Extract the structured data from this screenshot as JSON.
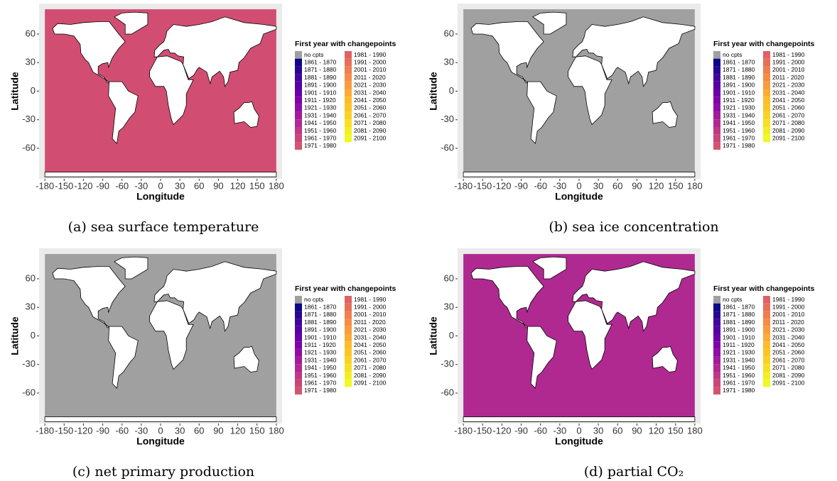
{
  "panels": [
    {
      "caption": "(a) sea surface temperature",
      "x_label": "Longitude",
      "y_label": "Latitude",
      "xlim": [
        -189,
        189
      ],
      "ylim": [
        -92,
        92
      ],
      "xticks": [
        -180,
        -150,
        -120,
        -90,
        -60,
        -30,
        0,
        30,
        60,
        90,
        120,
        150,
        180
      ],
      "yticks": [
        -60,
        -30,
        0,
        30,
        60
      ],
      "legend": {
        "title": "First year with changepoints",
        "entries": [
          {
            "label": "no cpts",
            "color": "#a0a0a0"
          },
          {
            "label": "1861 - 1870",
            "color": "#0d0887"
          },
          {
            "label": "1871 - 1880",
            "color": "#2a0593"
          },
          {
            "label": "1881 - 1890",
            "color": "#41049d"
          },
          {
            "label": "1891 - 1900",
            "color": "#5601a4"
          },
          {
            "label": "1901 - 1910",
            "color": "#6a00a8"
          },
          {
            "label": "1911 - 1920",
            "color": "#7e03a8"
          },
          {
            "label": "1921 - 1930",
            "color": "#8f0da4"
          },
          {
            "label": "1931 - 1940",
            "color": "#a11b9b"
          },
          {
            "label": "1941 - 1950",
            "color": "#b02991"
          },
          {
            "label": "1951 - 1960",
            "color": "#be3885"
          },
          {
            "label": "1961 - 1970",
            "color": "#ca457a"
          },
          {
            "label": "1971 - 1980",
            "color": "#d5536f"
          },
          {
            "label": "1981 - 1990",
            "color": "#de6164"
          },
          {
            "label": "1991 - 2000",
            "color": "#e76f5a"
          },
          {
            "label": "2001 - 2010",
            "color": "#ef7e50"
          },
          {
            "label": "2011 - 2020",
            "color": "#f58c46"
          },
          {
            "label": "2021 - 2030",
            "color": "#f99b3e"
          },
          {
            "label": "2031 - 2040",
            "color": "#fcab36"
          },
          {
            "label": "2041 - 2050",
            "color": "#febb2b"
          },
          {
            "label": "2051 - 2060",
            "color": "#fcc527"
          },
          {
            "label": "2061 - 2070",
            "color": "#fad225"
          },
          {
            "label": "2071 - 2080",
            "color": "#f8df25"
          },
          {
            "label": "2081 - 2090",
            "color": "#f3ee27"
          },
          {
            "label": "2091 - 2100",
            "color": "#f0f921"
          }
        ]
      }
    },
    {
      "caption": "(b) sea ice concentration",
      "x_label": "Longitude",
      "y_label": "Latitude",
      "xlim": [
        -189,
        189
      ],
      "ylim": [
        -92,
        92
      ],
      "xticks": [
        -180,
        -150,
        -120,
        -90,
        -60,
        -30,
        0,
        30,
        60,
        90,
        120,
        150,
        180
      ],
      "yticks": [
        -60,
        -30,
        0,
        30,
        60
      ],
      "legend": {
        "title": "First year with changepoints",
        "entries": [
          {
            "label": "no cpts",
            "color": "#a0a0a0"
          },
          {
            "label": "1861 - 1870",
            "color": "#0d0887"
          },
          {
            "label": "1871 - 1880",
            "color": "#2a0593"
          },
          {
            "label": "1881 - 1890",
            "color": "#41049d"
          },
          {
            "label": "1891 - 1900",
            "color": "#5601a4"
          },
          {
            "label": "1901 - 1910",
            "color": "#6a00a8"
          },
          {
            "label": "1911 - 1920",
            "color": "#7e03a8"
          },
          {
            "label": "1921 - 1930",
            "color": "#8f0da4"
          },
          {
            "label": "1931 - 1940",
            "color": "#a11b9b"
          },
          {
            "label": "1941 - 1950",
            "color": "#b02991"
          },
          {
            "label": "1951 - 1960",
            "color": "#be3885"
          },
          {
            "label": "1961 - 1970",
            "color": "#ca457a"
          },
          {
            "label": "1971 - 1980",
            "color": "#d5536f"
          },
          {
            "label": "1981 - 1990",
            "color": "#de6164"
          },
          {
            "label": "1991 - 2000",
            "color": "#e76f5a"
          },
          {
            "label": "2001 - 2010",
            "color": "#ef7e50"
          },
          {
            "label": "2011 - 2020",
            "color": "#f58c46"
          },
          {
            "label": "2021 - 2030",
            "color": "#f99b3e"
          },
          {
            "label": "2031 - 2040",
            "color": "#fcab36"
          },
          {
            "label": "2041 - 2050",
            "color": "#febb2b"
          },
          {
            "label": "2051 - 2060",
            "color": "#fcc527"
          },
          {
            "label": "2061 - 2070",
            "color": "#fad225"
          },
          {
            "label": "2071 - 2080",
            "color": "#f8df25"
          },
          {
            "label": "2081 - 2090",
            "color": "#f3ee27"
          },
          {
            "label": "2091 - 2100",
            "color": "#f0f921"
          }
        ]
      }
    },
    {
      "caption": "(c) net primary production",
      "x_label": "Longitude",
      "y_label": "Latitude",
      "xlim": [
        -189,
        189
      ],
      "ylim": [
        -92,
        92
      ],
      "xticks": [
        -180,
        -150,
        -120,
        -90,
        -60,
        -30,
        0,
        30,
        60,
        90,
        120,
        150,
        180
      ],
      "yticks": [
        -60,
        -30,
        0,
        30,
        60
      ],
      "legend": {
        "title": "First year with changepoints",
        "entries": [
          {
            "label": "no cpts",
            "color": "#a0a0a0"
          },
          {
            "label": "1861 - 1870",
            "color": "#0d0887"
          },
          {
            "label": "1871 - 1880",
            "color": "#2a0593"
          },
          {
            "label": "1881 - 1890",
            "color": "#41049d"
          },
          {
            "label": "1891 - 1900",
            "color": "#5601a4"
          },
          {
            "label": "1901 - 1910",
            "color": "#6a00a8"
          },
          {
            "label": "1911 - 1920",
            "color": "#7e03a8"
          },
          {
            "label": "1921 - 1930",
            "color": "#8f0da4"
          },
          {
            "label": "1931 - 1940",
            "color": "#a11b9b"
          },
          {
            "label": "1941 - 1950",
            "color": "#b02991"
          },
          {
            "label": "1951 - 1960",
            "color": "#be3885"
          },
          {
            "label": "1961 - 1970",
            "color": "#ca457a"
          },
          {
            "label": "1971 - 1980",
            "color": "#d5536f"
          },
          {
            "label": "1981 - 1990",
            "color": "#de6164"
          },
          {
            "label": "1991 - 2000",
            "color": "#e76f5a"
          },
          {
            "label": "2001 - 2010",
            "color": "#ef7e50"
          },
          {
            "label": "2011 - 2020",
            "color": "#f58c46"
          },
          {
            "label": "2021 - 2030",
            "color": "#f99b3e"
          },
          {
            "label": "2031 - 2040",
            "color": "#fcab36"
          },
          {
            "label": "2041 - 2050",
            "color": "#febb2b"
          },
          {
            "label": "2051 - 2060",
            "color": "#fcc527"
          },
          {
            "label": "2061 - 2070",
            "color": "#fad225"
          },
          {
            "label": "2071 - 2080",
            "color": "#f8df25"
          },
          {
            "label": "2081 - 2090",
            "color": "#f3ee27"
          },
          {
            "label": "2091 - 2100",
            "color": "#f0f921"
          }
        ]
      }
    },
    {
      "caption": "(d) partial CO₂",
      "x_label": "Longitude",
      "y_label": "Latitude",
      "xlim": [
        -189,
        189
      ],
      "ylim": [
        -92,
        92
      ],
      "xticks": [
        -180,
        -150,
        -120,
        -90,
        -60,
        -30,
        0,
        30,
        60,
        90,
        120,
        150,
        180
      ],
      "yticks": [
        -60,
        -30,
        0,
        30,
        60
      ],
      "legend": {
        "title": "First year with changepoints",
        "entries": [
          {
            "label": "no cpts",
            "color": "#a0a0a0"
          },
          {
            "label": "1861 - 1870",
            "color": "#0d0887"
          },
          {
            "label": "1871 - 1880",
            "color": "#2a0593"
          },
          {
            "label": "1881 - 1890",
            "color": "#41049d"
          },
          {
            "label": "1891 - 1900",
            "color": "#5601a4"
          },
          {
            "label": "1901 - 1910",
            "color": "#6a00a8"
          },
          {
            "label": "1911 - 1920",
            "color": "#7e03a8"
          },
          {
            "label": "1921 - 1930",
            "color": "#8f0da4"
          },
          {
            "label": "1931 - 1940",
            "color": "#a11b9b"
          },
          {
            "label": "1941 - 1950",
            "color": "#b02991"
          },
          {
            "label": "1951 - 1960",
            "color": "#be3885"
          },
          {
            "label": "1961 - 1970",
            "color": "#ca457a"
          },
          {
            "label": "1971 - 1980",
            "color": "#d5536f"
          },
          {
            "label": "1981 - 1990",
            "color": "#de6164"
          },
          {
            "label": "1991 - 2000",
            "color": "#e76f5a"
          },
          {
            "label": "2001 - 2010",
            "color": "#ef7e50"
          },
          {
            "label": "2011 - 2020",
            "color": "#f58c46"
          },
          {
            "label": "2021 - 2030",
            "color": "#f99b3e"
          },
          {
            "label": "2031 - 2040",
            "color": "#fcab36"
          },
          {
            "label": "2041 - 2050",
            "color": "#febb2b"
          },
          {
            "label": "2051 - 2060",
            "color": "#fcc527"
          },
          {
            "label": "2061 - 2070",
            "color": "#fad225"
          },
          {
            "label": "2071 - 2080",
            "color": "#f8df25"
          },
          {
            "label": "2081 - 2090",
            "color": "#f3ee27"
          },
          {
            "label": "2091 - 2100",
            "color": "#f0f921"
          }
        ]
      }
    }
  ]
}
